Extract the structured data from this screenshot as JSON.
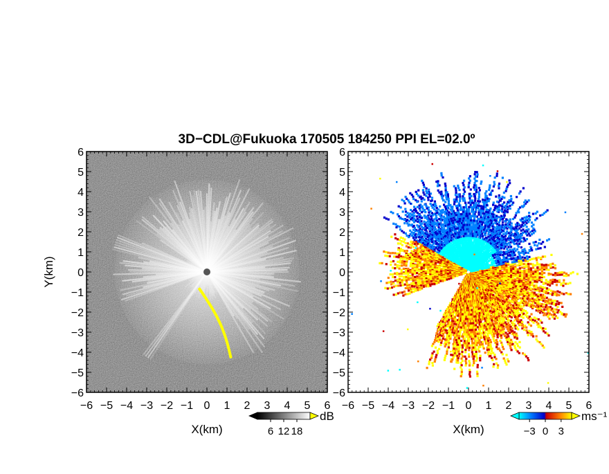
{
  "title": "3D−CDL@Fukuoka 170505 184250 PPI EL=02.0º",
  "chart_data": [
    {
      "type": "heatmap",
      "panel": "left",
      "quantity": "radar PPI scan (power)",
      "xlabel": "X(km)",
      "ylabel": "Y(km)",
      "xlim": [
        -6,
        6
      ],
      "ylim": [
        -6,
        6
      ],
      "x_ticks": [
        "−6",
        "−5",
        "−4",
        "−3",
        "−2",
        "−1",
        "0",
        "1",
        "2",
        "3",
        "4",
        "5",
        "6"
      ],
      "y_ticks": [
        "6",
        "5",
        "4",
        "3",
        "2",
        "1",
        "0",
        "−1",
        "−2",
        "−3",
        "−4",
        "−5",
        "−6"
      ],
      "colorbar": {
        "unit": "dB",
        "ticks": [
          "6",
          "12",
          "18"
        ],
        "tick_values": [
          6,
          12,
          18
        ],
        "range": [
          0,
          24
        ],
        "colors": [
          "#000000",
          "#ffffff"
        ],
        "over_color": "#ffff00"
      },
      "features": [
        {
          "name": "bright echo sector",
          "azimuth_deg": [
            330,
            200
          ],
          "range_km": [
            0,
            4.5
          ]
        },
        {
          "name": "yellow saturated arc",
          "from": [
            -0.4,
            -0.8
          ],
          "to": [
            1.2,
            -4.3
          ]
        }
      ]
    },
    {
      "type": "heatmap",
      "panel": "right",
      "quantity": "radial velocity",
      "xlabel": "X(km)",
      "ylabel": "",
      "xlim": [
        -6,
        6
      ],
      "ylim": [
        -6,
        6
      ],
      "x_ticks": [
        "−6",
        "−5",
        "−4",
        "−3",
        "−2",
        "−1",
        "0",
        "1",
        "2",
        "3",
        "4",
        "5",
        "6"
      ],
      "y_ticks": [
        "6",
        "5",
        "4",
        "3",
        "2",
        "1",
        "0",
        "−1",
        "−2",
        "−3",
        "−4",
        "−5",
        "−6"
      ],
      "colorbar": {
        "unit": "ms⁻¹",
        "ticks": [
          "−3",
          "0",
          "3"
        ],
        "tick_values": [
          -3,
          0,
          3
        ],
        "range": [
          -5,
          5
        ],
        "colors": [
          "#00ffff",
          "#0080ff",
          "#0000cc",
          "#cc0000",
          "#ff8000",
          "#ffff00"
        ]
      },
      "features": [
        {
          "name": "negative (approaching) sector",
          "sign": "negative",
          "region": "north"
        },
        {
          "name": "positive (receding) sector",
          "sign": "positive",
          "region": "south-east and west"
        }
      ]
    }
  ]
}
